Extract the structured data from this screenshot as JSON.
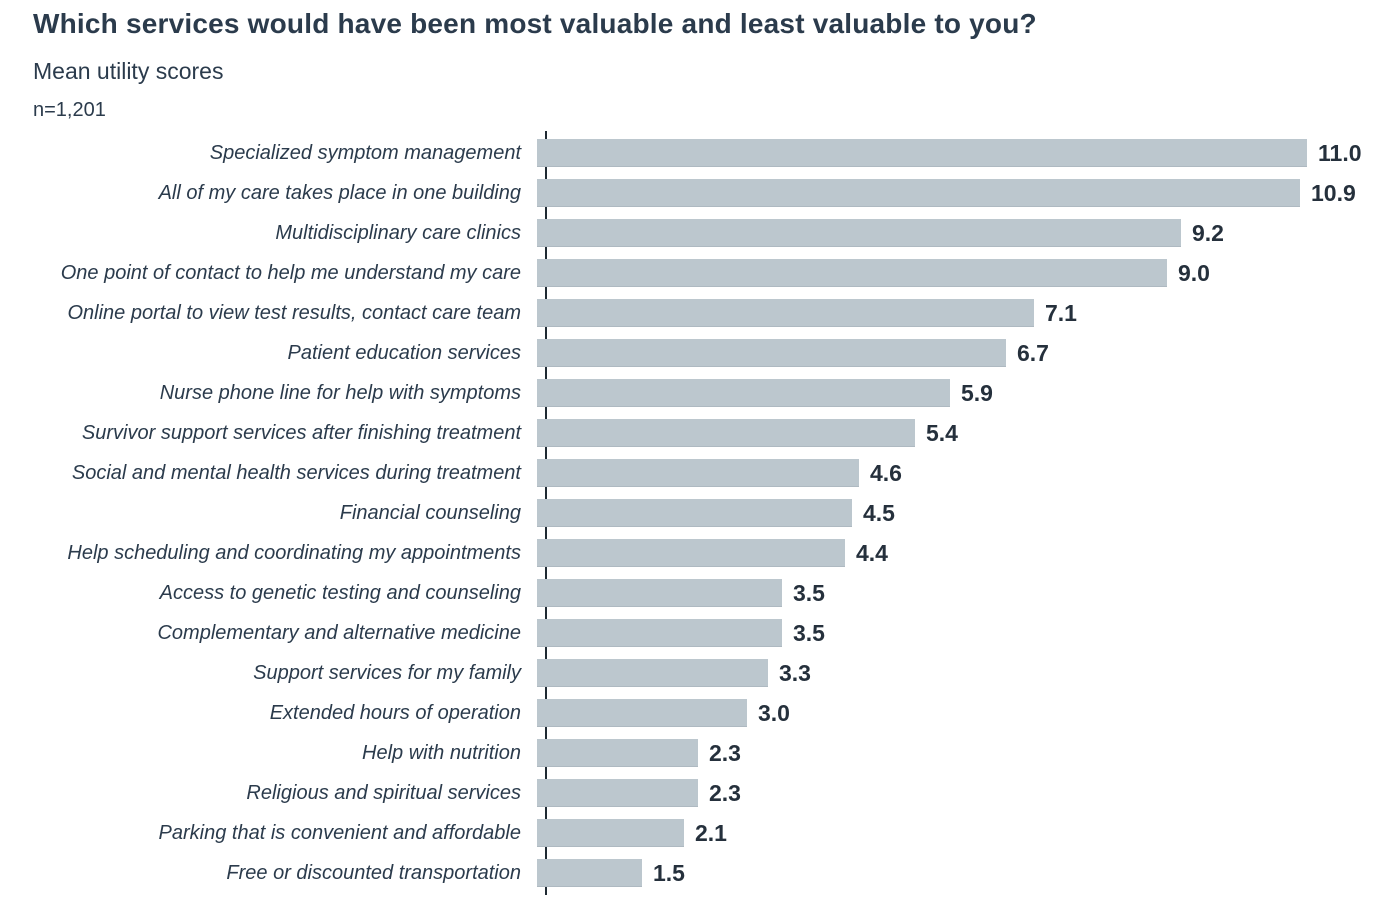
{
  "header": {
    "title": "Which services would have been most valuable and least valuable to you?",
    "subtitle": "Mean utility scores",
    "sample_size": "n=1,201"
  },
  "colors": {
    "bar_fill": "#bcc7ce",
    "bar_edge": "#aeb9c1",
    "text": "#2b3b4c",
    "value_text": "#25303c",
    "axis_line": "#1f2a33",
    "background": "#ffffff"
  },
  "chart_data": {
    "type": "bar",
    "orientation": "horizontal",
    "title": "Which services would have been most valuable and least valuable to you?",
    "subtitle": "Mean utility scores",
    "annotation": "n=1,201",
    "xlabel": "",
    "ylabel": "",
    "xlim": [
      0,
      12
    ],
    "grid": false,
    "legend": false,
    "value_labels": true,
    "value_format": "0.0",
    "categories": [
      "Specialized symptom management",
      "All of my care takes place in one building",
      "Multidisciplinary care clinics",
      "One point of contact to help me understand my care",
      "Online portal to view test results, contact care team",
      "Patient education services",
      "Nurse phone line for help with symptoms",
      "Survivor support services after finishing treatment",
      "Social and mental health services during treatment",
      "Financial counseling",
      "Help scheduling and coordinating my appointments",
      "Access to genetic testing and counseling",
      "Complementary and alternative medicine",
      "Support services for my family",
      "Extended hours of operation",
      "Help with nutrition",
      "Religious and spiritual services",
      "Parking that is convenient and affordable",
      "Free or discounted transportation"
    ],
    "values": [
      11.0,
      10.9,
      9.2,
      9.0,
      7.1,
      6.7,
      5.9,
      5.4,
      4.6,
      4.5,
      4.4,
      3.5,
      3.5,
      3.3,
      3.0,
      2.3,
      2.3,
      2.1,
      1.5
    ]
  }
}
